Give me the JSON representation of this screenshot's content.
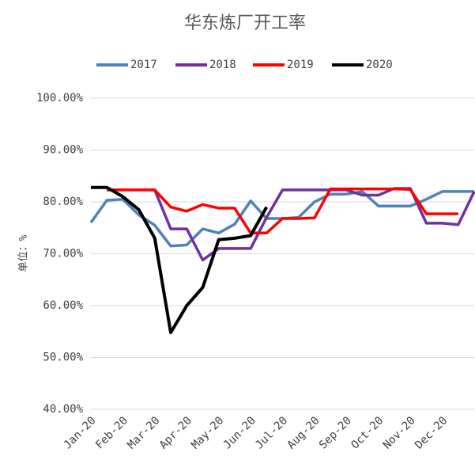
{
  "chart_data": {
    "type": "line",
    "title": "华东炼厂开工率",
    "y_label": "单位：%",
    "categories": [
      "Jan-20",
      null,
      "Feb-20",
      null,
      "Mar-20",
      null,
      "Apr-20",
      null,
      "May-20",
      null,
      "Jun-20",
      null,
      "Jul-20",
      null,
      "Aug-20",
      null,
      "Sep-20",
      null,
      "Oct-20",
      null,
      "Nov-20",
      null,
      "Dec-20",
      null,
      null
    ],
    "series": [
      {
        "name": "2017",
        "color": "#4f81bd",
        "values": [
          76,
          80.3,
          80.5,
          77.5,
          75.5,
          71.5,
          71.7,
          74.8,
          74,
          75.7,
          80.2,
          76.8,
          76.8,
          77,
          80,
          81.5,
          81.5,
          82,
          79.2,
          79.2,
          79.2,
          80.5,
          82,
          82,
          82
        ]
      },
      {
        "name": "2018",
        "color": "#7030a0",
        "values": [
          null,
          82.3,
          82.3,
          82.3,
          82.3,
          74.8,
          74.8,
          68.8,
          71,
          71,
          71,
          77,
          82.3,
          82.3,
          82.3,
          82.3,
          82.3,
          81.3,
          81.3,
          82.6,
          82.6,
          75.9,
          75.9,
          75.6,
          82
        ]
      },
      {
        "name": "2019",
        "color": "#ff0000",
        "values": [
          null,
          82.3,
          82.3,
          82.3,
          82.3,
          79,
          78.2,
          79.5,
          78.8,
          78.8,
          74,
          74,
          76.8,
          76.8,
          76.9,
          82.5,
          82.5,
          82.5,
          82.5,
          82.5,
          82.4,
          77.7,
          77.7,
          77.7,
          null
        ]
      },
      {
        "name": "2020",
        "color": "#000000",
        "values": [
          82.8,
          82.8,
          81,
          78.5,
          73,
          54.8,
          60,
          63.5,
          72.7,
          73,
          73.5,
          79,
          null,
          null,
          null,
          null,
          null,
          null,
          null,
          null,
          null,
          null,
          null,
          null,
          null
        ]
      }
    ],
    "ylim": [
      40,
      100
    ],
    "yticks": [
      {
        "value": 40,
        "label": "40.00%"
      },
      {
        "value": 50,
        "label": "50.00%"
      },
      {
        "value": 60,
        "label": "60.00%"
      },
      {
        "value": 70,
        "label": "70.00%"
      },
      {
        "value": 80,
        "label": "80.00%"
      },
      {
        "value": 90,
        "label": "90.00%"
      },
      {
        "value": 100,
        "label": "100.00%"
      }
    ],
    "grid": true,
    "legend": "top"
  }
}
